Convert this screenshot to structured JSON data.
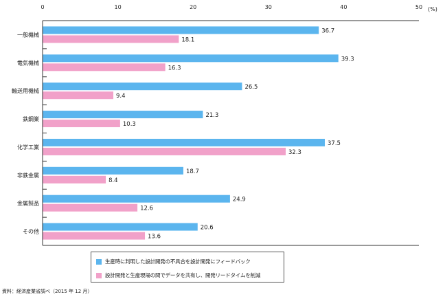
{
  "chart_data": {
    "type": "bar",
    "orientation": "horizontal",
    "categories": [
      "一般機械",
      "電気機械",
      "輸送用機械",
      "鉄鋼業",
      "化学工業",
      "非鉄金属",
      "金属製品",
      "その他"
    ],
    "series": [
      {
        "name": "生産時に判明した設計開発の不具合を設計開発にフィードバック",
        "color": "#5bb5ee",
        "values": [
          36.7,
          39.3,
          26.5,
          21.3,
          37.5,
          18.7,
          24.9,
          20.6
        ]
      },
      {
        "name": "設計開発と生産現場の間でデータを共有し、開発リードタイムを削減",
        "color": "#f1a1c9",
        "values": [
          18.1,
          16.3,
          9.4,
          10.3,
          32.3,
          8.4,
          12.6,
          13.6
        ]
      }
    ],
    "xlim": [
      0,
      50
    ],
    "xticks": [
      0,
      10,
      20,
      30,
      40,
      50
    ],
    "unit": "(%)",
    "grid": false,
    "legend_position": "bottom-center"
  },
  "source": "資料：経済産業省調べ（2015 年 12 月）"
}
